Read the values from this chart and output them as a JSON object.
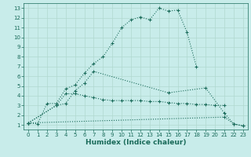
{
  "xlabel": "Humidex (Indice chaleur)",
  "bg_color": "#c8ecea",
  "grid_color": "#b0d8d0",
  "line_color": "#1a6b5a",
  "xlim": [
    -0.5,
    23.5
  ],
  "ylim": [
    0.5,
    13.5
  ],
  "xticks": [
    0,
    1,
    2,
    3,
    4,
    5,
    6,
    7,
    8,
    9,
    10,
    11,
    12,
    13,
    14,
    15,
    16,
    17,
    18,
    19,
    20,
    21,
    22,
    23
  ],
  "yticks": [
    1,
    2,
    3,
    4,
    5,
    6,
    7,
    8,
    9,
    10,
    11,
    12,
    13
  ],
  "series": [
    {
      "x": [
        0,
        1,
        2,
        3,
        4,
        5,
        6,
        7,
        8,
        9,
        10,
        11,
        12,
        13,
        14,
        15,
        16,
        17,
        18
      ],
      "y": [
        1.2,
        1.1,
        3.2,
        3.2,
        4.7,
        5.1,
        6.3,
        7.3,
        8.0,
        9.4,
        11.0,
        11.8,
        12.1,
        11.8,
        13.0,
        12.7,
        12.8,
        10.5,
        7.0
      ]
    },
    {
      "x": [
        0,
        3,
        4,
        5,
        6,
        7,
        15,
        19,
        21,
        22,
        23
      ],
      "y": [
        1.2,
        3.0,
        3.2,
        4.5,
        5.3,
        6.5,
        4.3,
        4.8,
        2.2,
        1.1,
        0.9
      ]
    },
    {
      "x": [
        0,
        3,
        4,
        5,
        6,
        7,
        8,
        9,
        10,
        11,
        12,
        13,
        14,
        15,
        16,
        17,
        18,
        19,
        20,
        21
      ],
      "y": [
        1.2,
        3.0,
        4.2,
        4.2,
        4.0,
        3.8,
        3.6,
        3.5,
        3.5,
        3.5,
        3.5,
        3.4,
        3.4,
        3.3,
        3.2,
        3.2,
        3.1,
        3.1,
        3.0,
        3.0
      ]
    },
    {
      "x": [
        0,
        21,
        22,
        23
      ],
      "y": [
        1.2,
        1.8,
        1.1,
        0.9
      ]
    }
  ]
}
